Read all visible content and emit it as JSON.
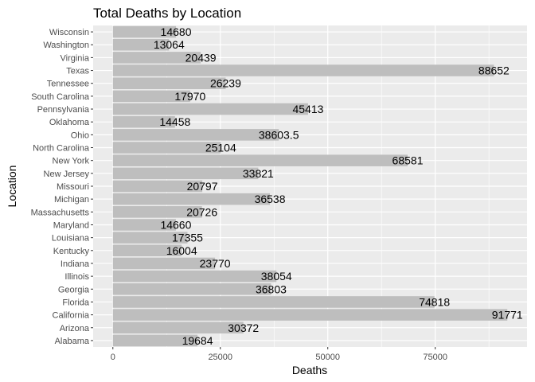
{
  "chart_data": {
    "type": "bar",
    "orientation": "horizontal",
    "title": "Total Deaths by Location",
    "xlabel": "Deaths",
    "ylabel": "Location",
    "categories": [
      "Alabama",
      "Arizona",
      "California",
      "Florida",
      "Georgia",
      "Illinois",
      "Indiana",
      "Kentucky",
      "Louisiana",
      "Maryland",
      "Massachusetts",
      "Michigan",
      "Missouri",
      "New Jersey",
      "New York",
      "North Carolina",
      "Ohio",
      "Oklahoma",
      "Pennsylvania",
      "South Carolina",
      "Tennessee",
      "Texas",
      "Virginia",
      "Washington",
      "Wisconsin"
    ],
    "values": [
      19684,
      30372,
      91771,
      74818,
      36803,
      38054,
      23770,
      16004,
      17355,
      14660,
      20726,
      36538,
      20797,
      33821,
      68581,
      25104,
      38603.5,
      14458,
      45413,
      17970,
      26239,
      88652,
      20439,
      13064,
      14680
    ],
    "value_labels": [
      "19684",
      "30372",
      "91771",
      "74818",
      "36803",
      "38054",
      "23770",
      "16004",
      "17355",
      "14660",
      "20726",
      "36538",
      "20797",
      "33821",
      "68581",
      "25104",
      "38603.5",
      "14458",
      "45413",
      "17970",
      "26239",
      "88652",
      "20439",
      "13064",
      "14680"
    ],
    "xlim": [
      -4589,
      96360
    ],
    "xticks": [
      0,
      25000,
      50000,
      75000
    ],
    "xtick_labels": [
      "0",
      "25000",
      "50000",
      "75000"
    ],
    "grid": true,
    "legend": "none",
    "colors": {
      "panel": "#ebebeb",
      "grid_major": "#ffffff",
      "bar": "#bebebe",
      "tick": "#333333"
    }
  }
}
